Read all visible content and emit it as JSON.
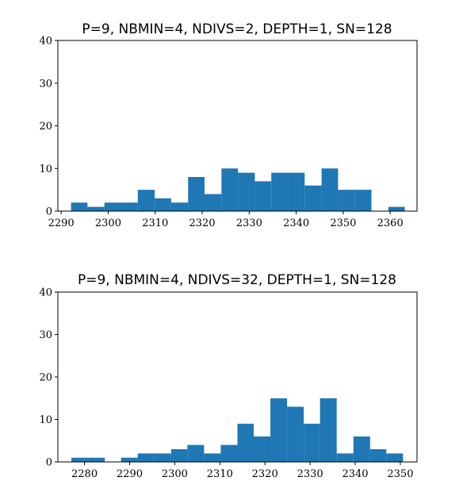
{
  "chart_data": [
    {
      "type": "bar",
      "title": "P=9, NBMIN=4, NDIVS=2, DEPTH=1, SN=128",
      "xlabel": "",
      "ylabel": "",
      "xlim": [
        2289.3,
        2365.7
      ],
      "ylim": [
        0,
        40
      ],
      "xticks": [
        "2290",
        "2300",
        "2310",
        "2320",
        "2330",
        "2340",
        "2350",
        "2360"
      ],
      "yticks": [
        "0",
        "10",
        "20",
        "30",
        "40"
      ],
      "bin_edges": [
        2292.1,
        2295.6,
        2299.2,
        2302.8,
        2306.3,
        2309.9,
        2313.4,
        2317.0,
        2320.5,
        2324.1,
        2327.6,
        2331.2,
        2334.7,
        2338.3,
        2341.8,
        2345.4,
        2348.9,
        2352.5,
        2356.0,
        2359.6,
        2363.1
      ],
      "values": [
        2,
        1,
        2,
        2,
        5,
        3,
        2,
        8,
        4,
        10,
        9,
        7,
        9,
        9,
        6,
        10,
        5,
        5,
        0,
        1
      ],
      "color": "#1f77b4"
    },
    {
      "type": "bar",
      "title": "P=9, NBMIN=4, NDIVS=32, DEPTH=1, SN=128",
      "xlabel": "",
      "ylabel": "",
      "xlim": [
        2274.1,
        2353.7
      ],
      "ylim": [
        0,
        40
      ],
      "xticks": [
        "2280",
        "2290",
        "2300",
        "2310",
        "2320",
        "2330",
        "2340",
        "2350"
      ],
      "yticks": [
        "0",
        "10",
        "20",
        "30",
        "40"
      ],
      "bin_edges": [
        2277.1,
        2280.8,
        2284.5,
        2288.1,
        2291.8,
        2295.5,
        2299.2,
        2302.8,
        2306.5,
        2310.2,
        2313.9,
        2317.5,
        2321.2,
        2324.9,
        2328.6,
        2332.2,
        2335.9,
        2339.6,
        2343.3,
        2346.9,
        2350.6
      ],
      "values": [
        1,
        1,
        0,
        1,
        2,
        2,
        3,
        4,
        2,
        4,
        9,
        6,
        15,
        13,
        9,
        15,
        2,
        6,
        3,
        2
      ],
      "color": "#1f77b4"
    }
  ]
}
